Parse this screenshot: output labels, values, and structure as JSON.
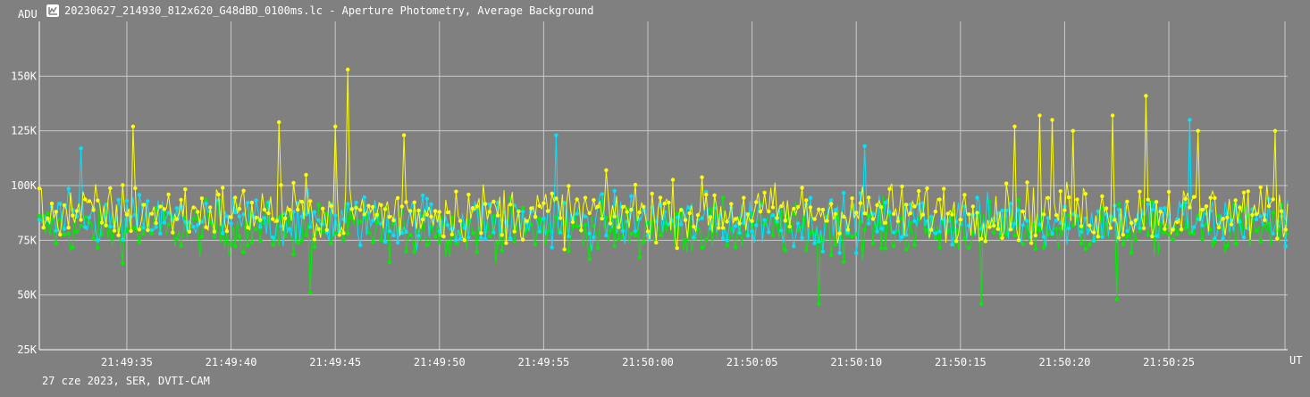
{
  "window": {
    "title": "20230627_214930_812x620_G48dBD_0100ms.lc - Aperture Photometry, Average Background",
    "icon": "chart-window-icon"
  },
  "footer": {
    "text": "27 cze 2023, SER, DVTI-CAM"
  },
  "colors": {
    "background": "#808080",
    "grid": "#c8c8c8",
    "yellow": "#ffff00",
    "cyan": "#00e5ff",
    "green": "#00ee00"
  },
  "chart_data": {
    "type": "line",
    "ylabel": "ADU",
    "xlabel": "UT",
    "ylim": [
      25000,
      175000
    ],
    "xlim": [
      "21:49:30.8",
      "21:50:30.7"
    ],
    "x_tick_labels": [
      "21:49:35",
      "21:49:40",
      "21:49:45",
      "21:49:50",
      "21:49:55",
      "21:50:00",
      "21:50:05",
      "21:50:10",
      "21:50:15",
      "21:50:20",
      "21:50:25"
    ],
    "x_tick_seconds_after_214930": [
      5,
      10,
      15,
      20,
      25,
      30,
      35,
      40,
      45,
      50,
      55
    ],
    "y_ticks": [
      25000,
      50000,
      75000,
      100000,
      125000,
      150000
    ],
    "y_tick_labels": [
      "25K",
      "50K",
      "75K",
      "100K",
      "125K",
      "150K"
    ],
    "grid": true,
    "sampling_interval_s": 0.1,
    "series": [
      {
        "color": "#ffff00",
        "mean": 88000,
        "spread": 11000,
        "peaks": [
          {
            "t": "21:49:45.6",
            "value": 153000
          },
          {
            "t": "21:49:45.0",
            "value": 127000
          },
          {
            "t": "21:49:42.3",
            "value": 129000
          },
          {
            "t": "21:49:35.3",
            "value": 127000
          },
          {
            "t": "21:50:23.9",
            "value": 141000
          },
          {
            "t": "21:50:22.3",
            "value": 132000
          },
          {
            "t": "21:50:18.8",
            "value": 132000
          },
          {
            "t": "21:50:19.4",
            "value": 130000
          },
          {
            "t": "21:50:20.4",
            "value": 125000
          },
          {
            "t": "21:50:30.1",
            "value": 125000
          },
          {
            "t": "21:50:26.4",
            "value": 125000
          },
          {
            "t": "21:49:48.3",
            "value": 123000
          },
          {
            "t": "21:50:17.6",
            "value": 127000
          }
        ]
      },
      {
        "color": "#00e5ff",
        "mean": 84000,
        "spread": 10000,
        "peaks": [
          {
            "t": "21:49:55.6",
            "value": 123000
          },
          {
            "t": "21:50:26.0",
            "value": 130000
          },
          {
            "t": "21:50:10.4",
            "value": 118000
          },
          {
            "t": "21:49:32.8",
            "value": 117000
          }
        ]
      },
      {
        "color": "#00ee00",
        "mean": 80000,
        "spread": 10000,
        "peaks": [
          {
            "t": "21:50:08.2",
            "value": 46000
          },
          {
            "t": "21:50:16.0",
            "value": 46000
          },
          {
            "t": "21:50:22.5",
            "value": 48000
          },
          {
            "t": "21:49:43.8",
            "value": 51000
          }
        ]
      }
    ]
  }
}
